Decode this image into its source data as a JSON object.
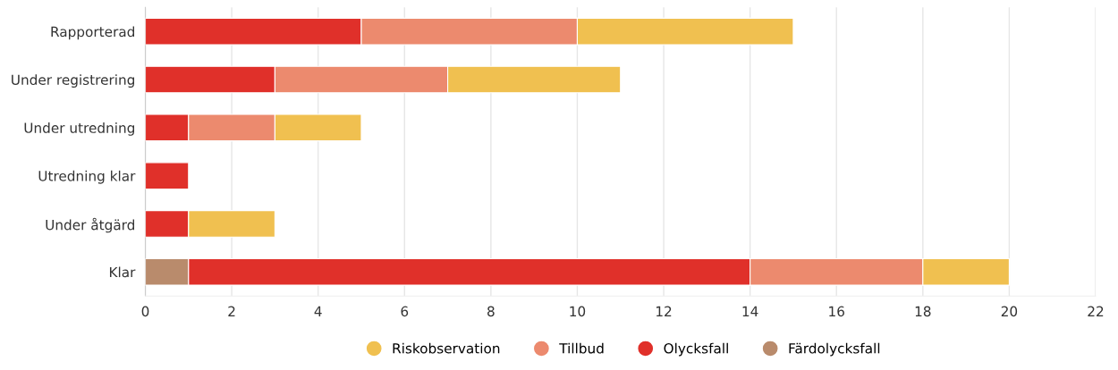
{
  "chart_data": {
    "type": "bar",
    "orientation": "horizontal",
    "stacked": true,
    "categories": [
      "Rapporterad",
      "Under registrering",
      "Under utredning",
      "Utredning klar",
      "Under åtgärd",
      "Klar"
    ],
    "series": [
      {
        "name": "Färdolycksfall",
        "color": "#b98b6c",
        "values": [
          null,
          null,
          null,
          null,
          null,
          1
        ]
      },
      {
        "name": "Olycksfall",
        "color": "#e0302a",
        "values": [
          5,
          3,
          1,
          1,
          1,
          13
        ]
      },
      {
        "name": "Tillbud",
        "color": "#ec8a6e",
        "values": [
          5,
          4,
          2,
          null,
          null,
          4
        ]
      },
      {
        "name": "Riskobservation",
        "color": "#f0c050",
        "values": [
          5,
          4,
          2,
          null,
          2,
          2
        ]
      }
    ],
    "xlim": [
      0,
      22
    ],
    "xticks": [
      0,
      2,
      4,
      6,
      8,
      10,
      12,
      14,
      16,
      18,
      20,
      22
    ],
    "grid": "x",
    "legend": "bottom"
  }
}
